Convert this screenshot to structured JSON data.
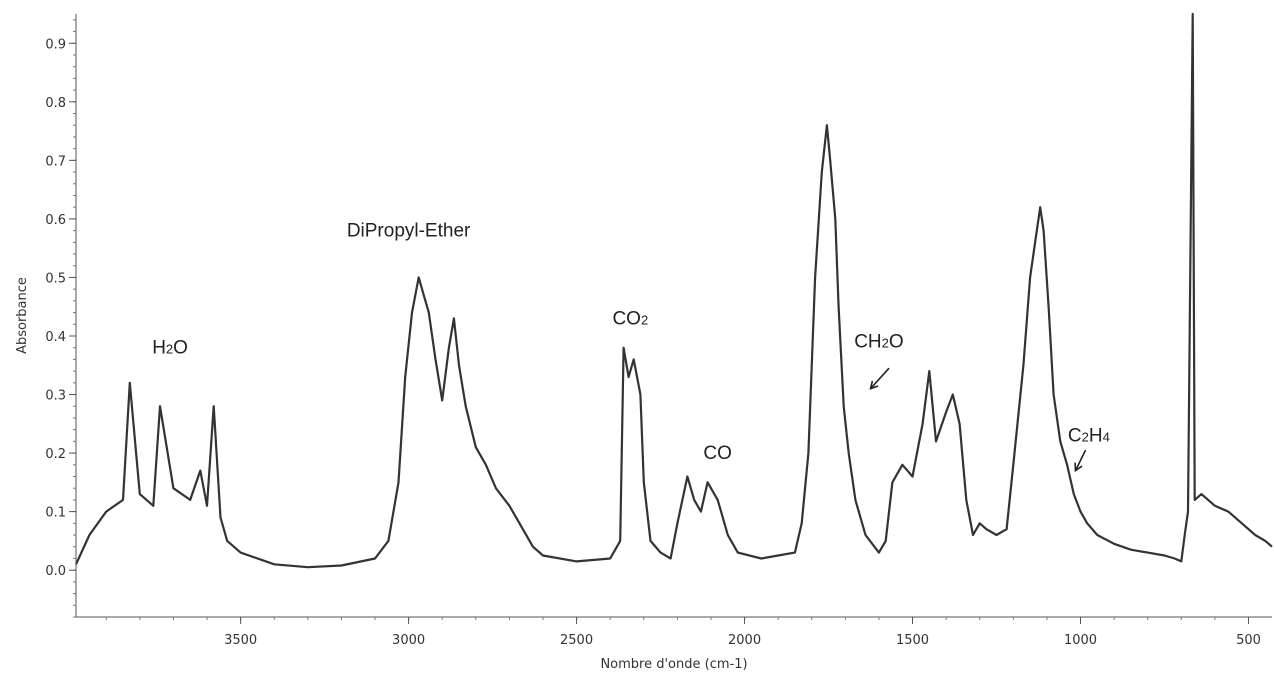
{
  "chart_data": {
    "type": "line",
    "title": "",
    "xlabel": "Nombre d'onde (cm-1)",
    "ylabel": "Absorbance",
    "xlim": [
      3990,
      430
    ],
    "ylim": [
      -0.08,
      0.95
    ],
    "x_reversed": true,
    "x_ticks": [
      3500,
      3000,
      2500,
      2000,
      1500,
      1000,
      500
    ],
    "y_ticks": [
      0.0,
      0.1,
      0.2,
      0.3,
      0.4,
      0.5,
      0.6,
      0.7,
      0.8,
      0.9
    ],
    "x_tick_labels": [
      "3500",
      "3000",
      "2500",
      "2000",
      "1500",
      "1000",
      "500"
    ],
    "y_tick_labels": [
      "0.0",
      "0.1",
      "0.2",
      "0.3",
      "0.4",
      "0.5",
      "0.6",
      "0.7",
      "0.8",
      "0.9"
    ],
    "grid": false,
    "series_color": "#333333",
    "series": [
      {
        "values": [
          [
            3990,
            0.01
          ],
          [
            3950,
            0.06
          ],
          [
            3900,
            0.1
          ],
          [
            3850,
            0.12
          ],
          [
            3830,
            0.32
          ],
          [
            3800,
            0.13
          ],
          [
            3760,
            0.11
          ],
          [
            3740,
            0.28
          ],
          [
            3700,
            0.14
          ],
          [
            3650,
            0.12
          ],
          [
            3620,
            0.17
          ],
          [
            3600,
            0.11
          ],
          [
            3580,
            0.28
          ],
          [
            3560,
            0.09
          ],
          [
            3540,
            0.05
          ],
          [
            3500,
            0.03
          ],
          [
            3400,
            0.01
          ],
          [
            3300,
            0.005
          ],
          [
            3200,
            0.008
          ],
          [
            3100,
            0.02
          ],
          [
            3060,
            0.05
          ],
          [
            3030,
            0.15
          ],
          [
            3010,
            0.33
          ],
          [
            2990,
            0.44
          ],
          [
            2970,
            0.5
          ],
          [
            2955,
            0.47
          ],
          [
            2940,
            0.44
          ],
          [
            2920,
            0.36
          ],
          [
            2900,
            0.29
          ],
          [
            2880,
            0.38
          ],
          [
            2865,
            0.43
          ],
          [
            2850,
            0.35
          ],
          [
            2830,
            0.28
          ],
          [
            2800,
            0.21
          ],
          [
            2770,
            0.18
          ],
          [
            2740,
            0.14
          ],
          [
            2700,
            0.11
          ],
          [
            2670,
            0.08
          ],
          [
            2630,
            0.04
          ],
          [
            2600,
            0.025
          ],
          [
            2500,
            0.015
          ],
          [
            2400,
            0.02
          ],
          [
            2370,
            0.05
          ],
          [
            2360,
            0.38
          ],
          [
            2345,
            0.33
          ],
          [
            2330,
            0.36
          ],
          [
            2310,
            0.3
          ],
          [
            2300,
            0.15
          ],
          [
            2280,
            0.05
          ],
          [
            2250,
            0.03
          ],
          [
            2220,
            0.02
          ],
          [
            2200,
            0.08
          ],
          [
            2170,
            0.16
          ],
          [
            2150,
            0.12
          ],
          [
            2130,
            0.1
          ],
          [
            2110,
            0.15
          ],
          [
            2080,
            0.12
          ],
          [
            2050,
            0.06
          ],
          [
            2020,
            0.03
          ],
          [
            1950,
            0.02
          ],
          [
            1900,
            0.025
          ],
          [
            1850,
            0.03
          ],
          [
            1830,
            0.08
          ],
          [
            1810,
            0.2
          ],
          [
            1790,
            0.5
          ],
          [
            1770,
            0.68
          ],
          [
            1755,
            0.76
          ],
          [
            1745,
            0.7
          ],
          [
            1730,
            0.6
          ],
          [
            1720,
            0.45
          ],
          [
            1705,
            0.28
          ],
          [
            1690,
            0.2
          ],
          [
            1670,
            0.12
          ],
          [
            1640,
            0.06
          ],
          [
            1600,
            0.03
          ],
          [
            1580,
            0.05
          ],
          [
            1560,
            0.15
          ],
          [
            1530,
            0.18
          ],
          [
            1500,
            0.16
          ],
          [
            1470,
            0.25
          ],
          [
            1450,
            0.34
          ],
          [
            1430,
            0.22
          ],
          [
            1400,
            0.27
          ],
          [
            1380,
            0.3
          ],
          [
            1360,
            0.25
          ],
          [
            1340,
            0.12
          ],
          [
            1320,
            0.06
          ],
          [
            1300,
            0.08
          ],
          [
            1280,
            0.07
          ],
          [
            1250,
            0.06
          ],
          [
            1220,
            0.07
          ],
          [
            1200,
            0.18
          ],
          [
            1170,
            0.35
          ],
          [
            1150,
            0.5
          ],
          [
            1130,
            0.58
          ],
          [
            1120,
            0.62
          ],
          [
            1110,
            0.58
          ],
          [
            1095,
            0.45
          ],
          [
            1080,
            0.3
          ],
          [
            1060,
            0.22
          ],
          [
            1040,
            0.18
          ],
          [
            1020,
            0.13
          ],
          [
            1000,
            0.1
          ],
          [
            980,
            0.08
          ],
          [
            950,
            0.06
          ],
          [
            900,
            0.045
          ],
          [
            850,
            0.035
          ],
          [
            800,
            0.03
          ],
          [
            750,
            0.025
          ],
          [
            720,
            0.02
          ],
          [
            700,
            0.015
          ],
          [
            690,
            0.06
          ],
          [
            680,
            0.1
          ],
          [
            666,
            0.95
          ],
          [
            660,
            0.12
          ],
          [
            640,
            0.13
          ],
          [
            600,
            0.11
          ],
          [
            560,
            0.1
          ],
          [
            520,
            0.08
          ],
          [
            480,
            0.06
          ],
          [
            450,
            0.05
          ],
          [
            430,
            0.04
          ]
        ]
      }
    ],
    "annotations": [
      {
        "text_parts": [
          "H",
          "2",
          "O"
        ],
        "x": 3710,
        "y": 0.37
      },
      {
        "text_parts": [
          "DiPropyl-Ether"
        ],
        "x": 3000,
        "y": 0.57
      },
      {
        "text_parts": [
          "CO",
          "2",
          ""
        ],
        "x": 2340,
        "y": 0.42
      },
      {
        "text_parts": [
          "CO"
        ],
        "x": 2080,
        "y": 0.19
      },
      {
        "text_parts": [
          "CH",
          "2",
          "O"
        ],
        "x": 1600,
        "y": 0.38
      },
      {
        "text_parts": [
          "C",
          "2",
          "H",
          "4",
          ""
        ],
        "x": 975,
        "y": 0.22
      }
    ]
  }
}
